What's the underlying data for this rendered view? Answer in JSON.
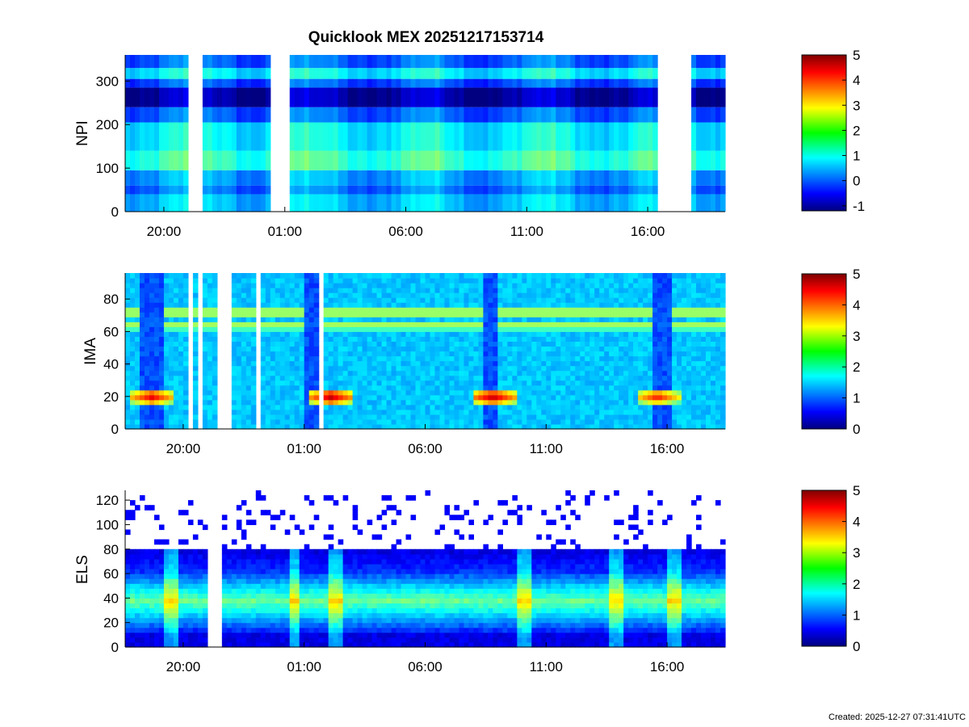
{
  "figure": {
    "title": "Quicklook MEX 20251217153714",
    "created": "Created: 2025-12-27 07:31:41UTC"
  },
  "chart_data": [
    {
      "type": "heatmap",
      "instrument": "NPI",
      "ylabel": "NPI",
      "ylim": [
        0,
        360
      ],
      "yticks": [
        0,
        100,
        200,
        300
      ],
      "xticks": [
        "20:00",
        "01:00",
        "06:00",
        "11:00",
        "16:00"
      ],
      "x_tick_hours_since_start": [
        0,
        5,
        10,
        15,
        20
      ],
      "x_range_hours_since_start": [
        -1.6,
        23.2
      ],
      "data_gaps_hours": [
        [
          1.0,
          1.55
        ],
        [
          4.45,
          5.2
        ],
        [
          20.45,
          21.8
        ]
      ],
      "bands": [
        {
          "from": 0,
          "to": 40,
          "level": 0.8
        },
        {
          "from": 40,
          "to": 60,
          "level": 0.3
        },
        {
          "from": 60,
          "to": 95,
          "level": 0.6
        },
        {
          "from": 95,
          "to": 140,
          "level": 1.5
        },
        {
          "from": 140,
          "to": 205,
          "level": 1.1
        },
        {
          "from": 205,
          "to": 240,
          "level": 0.2
        },
        {
          "from": 240,
          "to": 285,
          "level": -0.9
        },
        {
          "from": 285,
          "to": 305,
          "level": 0.1
        },
        {
          "from": 305,
          "to": 330,
          "level": 1.1
        },
        {
          "from": 330,
          "to": 360,
          "level": 0.2
        }
      ],
      "colorbar": {
        "min": -1.2,
        "max": 5,
        "ticks": [
          -1,
          0,
          1,
          2,
          3,
          4,
          5
        ]
      }
    },
    {
      "type": "heatmap",
      "instrument": "IMA",
      "ylabel": "IMA",
      "ylim": [
        0,
        96
      ],
      "yticks": [
        0,
        20,
        40,
        60,
        80
      ],
      "xticks": [
        "20:00",
        "01:00",
        "06:00",
        "11:00",
        "16:00"
      ],
      "x_tick_hours_since_start": [
        0,
        5,
        10,
        15,
        20
      ],
      "x_range_hours_since_start": [
        -2.4,
        22.4
      ],
      "data_gaps_hours": [
        [
          0.1,
          0.3
        ],
        [
          0.5,
          0.85
        ],
        [
          1.3,
          1.9
        ],
        [
          1.95,
          2.05
        ],
        [
          3.05,
          3.15
        ],
        [
          3.55,
          3.65
        ],
        [
          4.35,
          4.45
        ],
        [
          5.65,
          5.8
        ]
      ],
      "background_level": 1.6,
      "low_density_intervals_hours": [
        [
          -1.8,
          -0.9
        ],
        [
          5.1,
          5.6
        ],
        [
          12.3,
          12.9
        ],
        [
          19.3,
          20.1
        ]
      ],
      "ion_bands": [
        {
          "y": 72,
          "level": 3.0
        },
        {
          "y": 64,
          "level": 2.8
        }
      ],
      "hotspots": [
        {
          "x_hours": -1.3,
          "y": 20,
          "level": 4.6
        },
        {
          "x_hours": 6.1,
          "y": 20,
          "level": 4.8
        },
        {
          "x_hours": 12.8,
          "y": 20,
          "level": 4.8
        },
        {
          "x_hours": 19.6,
          "y": 20,
          "level": 4.4
        }
      ],
      "colorbar": {
        "min": 0,
        "max": 5,
        "ticks": [
          0,
          1,
          2,
          3,
          4,
          5
        ]
      }
    },
    {
      "type": "heatmap",
      "instrument": "ELS",
      "ylabel": "ELS",
      "ylim": [
        0,
        128
      ],
      "yticks": [
        0,
        20,
        40,
        60,
        80,
        100,
        120
      ],
      "xticks": [
        "20:00",
        "01:00",
        "06:00",
        "11:00",
        "16:00"
      ],
      "x_tick_hours_since_start": [
        0,
        5,
        10,
        15,
        20
      ],
      "x_range_hours_since_start": [
        -2.4,
        22.4
      ],
      "data_gaps_hours": [
        [
          0.9,
          1.5
        ]
      ],
      "core_band": {
        "center": 38,
        "halfwidth": 22,
        "peak_level": 2.4
      },
      "upper_edge": 80,
      "bright_spikes_hours": [
        -0.5,
        4.6,
        6.3,
        14.1,
        17.9,
        20.3
      ],
      "colorbar": {
        "min": 0,
        "max": 5,
        "ticks": [
          0,
          1,
          2,
          3,
          4,
          5
        ]
      }
    }
  ]
}
